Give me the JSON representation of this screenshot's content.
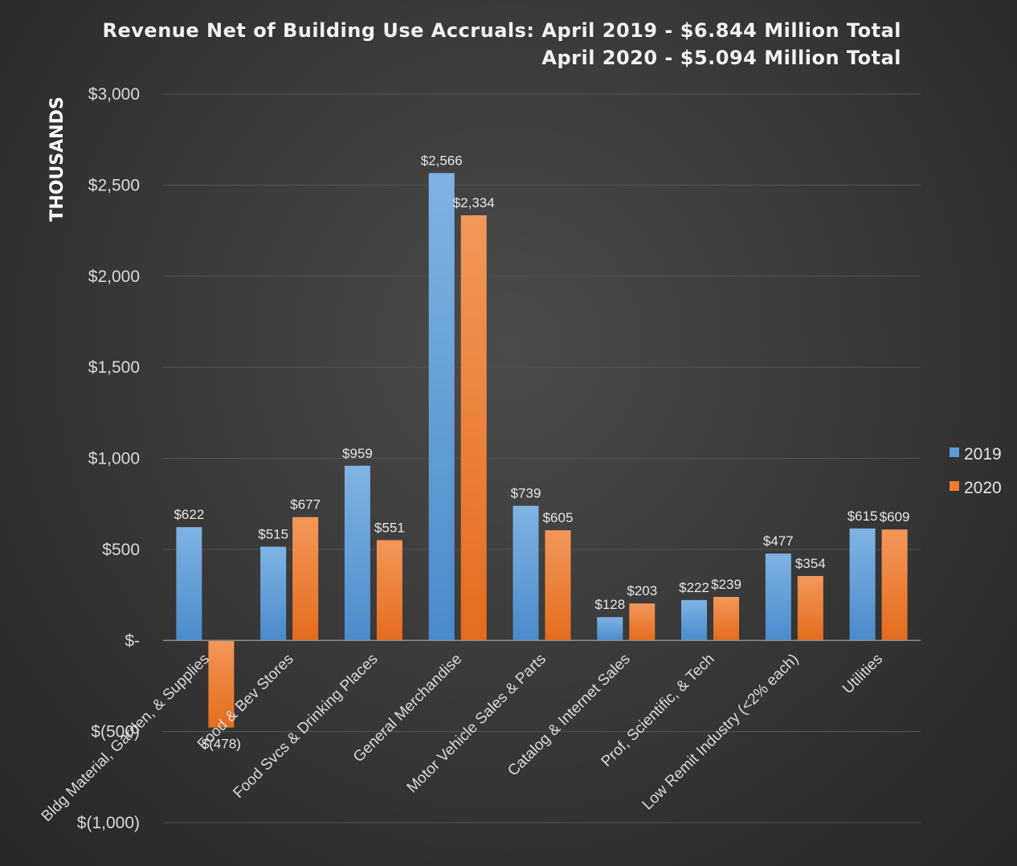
{
  "chart_data": {
    "type": "bar",
    "title": "Revenue Net of Building Use Accruals: April 2019 - $6.844 Million Total",
    "subtitle": "April 2020 - $5.094 Million Total",
    "xlabel": "",
    "ylabel": "THOUSANDS",
    "ylim": [
      -1000,
      3000
    ],
    "yticks": [
      -1000,
      -500,
      0,
      500,
      1000,
      1500,
      2000,
      2500,
      3000
    ],
    "ytick_labels": [
      "$(1,000)",
      "$(500)",
      "$-",
      "$500",
      "$1,000",
      "$1,500",
      "$2,000",
      "$2,500",
      "$3,000"
    ],
    "grid": true,
    "legend_position": "right",
    "categories": [
      "Bldg Material, Garden, & Supplies",
      "Food & Bev Stores",
      "Food Svcs & Drinking Places",
      "General Merchandise",
      "Motor Vehicle Sales & Parts",
      "Catalog & Internet Sales",
      "Prof, Scientific, & Tech",
      "Low Remit Industry (<2% each)",
      "Utilities"
    ],
    "series": [
      {
        "name": "2019",
        "color": "#5b9bd5",
        "values": [
          622,
          515,
          959,
          2566,
          739,
          128,
          222,
          477,
          615
        ],
        "labels": [
          "$622",
          "$515",
          "$959",
          "$2,566",
          "$739",
          "$128",
          "$222",
          "$477",
          "$615"
        ]
      },
      {
        "name": "2020",
        "color": "#ed7d31",
        "values": [
          -478,
          677,
          551,
          2334,
          605,
          203,
          239,
          354,
          609
        ],
        "labels": [
          "$(478)",
          "$677",
          "$551",
          "$2,334",
          "$605",
          "$203",
          "$239",
          "$354",
          "$609"
        ]
      }
    ]
  }
}
